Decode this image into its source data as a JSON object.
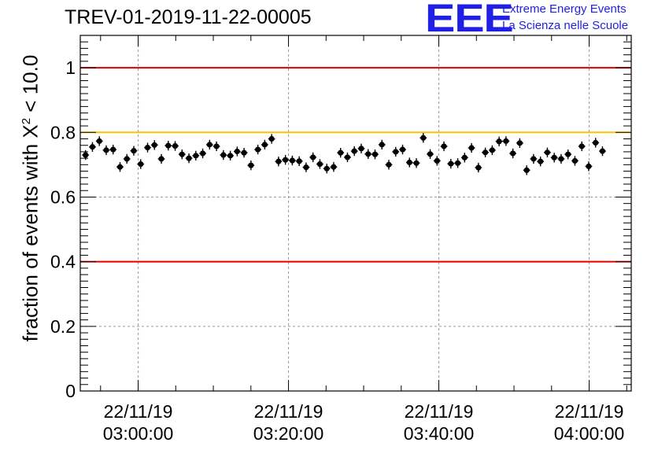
{
  "logo": {
    "mark": "EEE",
    "line1": "Extreme Energy Events",
    "line2": "La Scienza nelle Scuole"
  },
  "colors": {
    "limit_red": "#e00000",
    "limit_orange": "#ffc000",
    "logo_blue": "#1f1fe6",
    "marker": "#000000",
    "grid": "#9a9a9a"
  },
  "chart_data": {
    "type": "scatter",
    "title": "TREV-01-2019-11-22-00005",
    "ylabel_prefix": "fraction of events with X",
    "ylabel_sup": "2",
    "ylabel_suffix": " < 10.0",
    "xlabel": "",
    "x_unit": "minutes since 02:50:00",
    "xlim": [
      2.3,
      75.6
    ],
    "ylim": [
      0,
      1.1
    ],
    "y_ticks": [
      0,
      0.2,
      0.4,
      0.6,
      0.8,
      1
    ],
    "y_tick_labels": [
      "0",
      "0.2",
      "0.4",
      "0.6",
      "0.8",
      "1"
    ],
    "x_ticks": [
      10,
      30,
      50,
      70
    ],
    "x_tick_labels": [
      {
        "date": "22/11/19",
        "time": "03:00:00"
      },
      {
        "date": "22/11/19",
        "time": "03:20:00"
      },
      {
        "date": "22/11/19",
        "time": "03:40:00"
      },
      {
        "date": "22/11/19",
        "time": "04:00:00"
      }
    ],
    "grid": true,
    "reference_lines": [
      {
        "y": 1.0,
        "color": "red"
      },
      {
        "y": 0.8,
        "color": "orange"
      },
      {
        "y": 0.4,
        "color": "red"
      }
    ],
    "series": [
      {
        "name": "fraction",
        "x_start": 3.0,
        "x_step": 0.917,
        "y_error": 0.015,
        "values": [
          0.73,
          0.755,
          0.773,
          0.745,
          0.747,
          0.693,
          0.718,
          0.743,
          0.702,
          0.753,
          0.761,
          0.718,
          0.759,
          0.758,
          0.732,
          0.72,
          0.728,
          0.735,
          0.762,
          0.757,
          0.73,
          0.728,
          0.741,
          0.737,
          0.698,
          0.747,
          0.762,
          0.78,
          0.71,
          0.715,
          0.713,
          0.711,
          0.692,
          0.723,
          0.702,
          0.688,
          0.693,
          0.737,
          0.723,
          0.742,
          0.75,
          0.733,
          0.732,
          0.762,
          0.7,
          0.74,
          0.747,
          0.707,
          0.705,
          0.783,
          0.733,
          0.712,
          0.757,
          0.703,
          0.705,
          0.722,
          0.752,
          0.691,
          0.738,
          0.745,
          0.772,
          0.773,
          0.735,
          0.767,
          0.683,
          0.718,
          0.71,
          0.738,
          0.722,
          0.718,
          0.732,
          0.712,
          0.757,
          0.695,
          0.768,
          0.742
        ]
      }
    ]
  }
}
